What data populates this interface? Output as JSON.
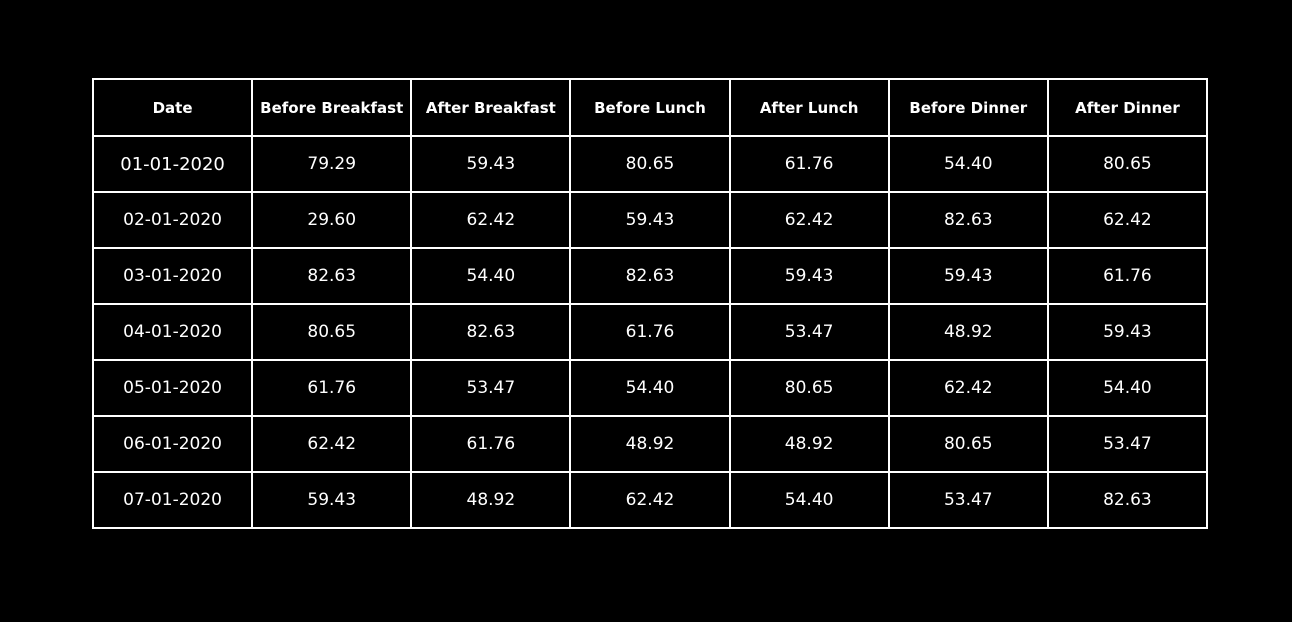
{
  "table": {
    "headers": [
      "Date",
      "Before Breakfast",
      "After Breakfast",
      "Before Lunch",
      "After Lunch",
      "Before Dinner",
      "After Dinner"
    ],
    "rows": [
      [
        "01-01-2020",
        "79.29",
        "59.43",
        "80.65",
        "61.76",
        "54.40",
        "80.65"
      ],
      [
        "02-01-2020",
        "29.60",
        "62.42",
        "59.43",
        "62.42",
        "82.63",
        "62.42"
      ],
      [
        "03-01-2020",
        "82.63",
        "54.40",
        "82.63",
        "59.43",
        "59.43",
        "61.76"
      ],
      [
        "04-01-2020",
        "80.65",
        "82.63",
        "61.76",
        "53.47",
        "48.92",
        "59.43"
      ],
      [
        "05-01-2020",
        "61.76",
        "53.47",
        "54.40",
        "80.65",
        "62.42",
        "54.40"
      ],
      [
        "06-01-2020",
        "62.42",
        "61.76",
        "48.92",
        "48.92",
        "80.65",
        "53.47"
      ],
      [
        "07-01-2020",
        "59.43",
        "48.92",
        "62.42",
        "54.40",
        "53.47",
        "82.63"
      ]
    ]
  },
  "colors": {
    "background": "#000000",
    "text": "#ffffff",
    "border": "#ffffff"
  }
}
